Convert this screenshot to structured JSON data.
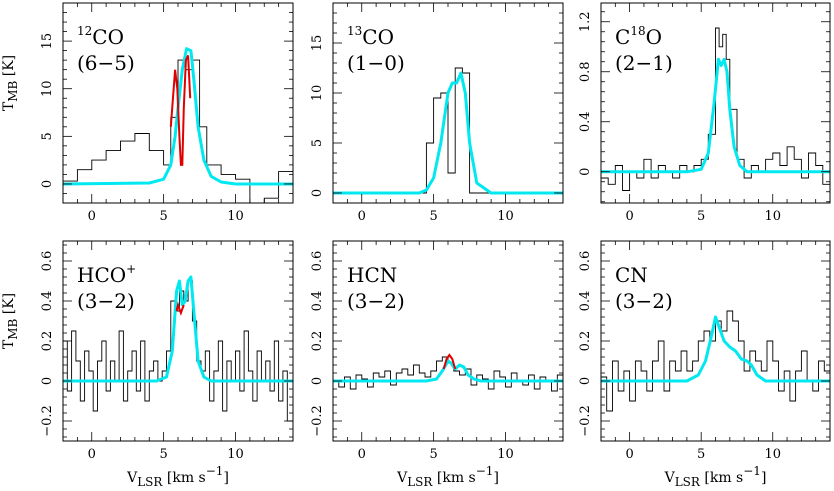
{
  "colors": {
    "model": "#00e8f0",
    "red_model": "#e00000",
    "spectrum": "#000000"
  },
  "chart_data": [
    {
      "type": "line",
      "title": "",
      "molecule": "CO",
      "isotope": "12",
      "transition": "(6−5)",
      "ylabel_main": "T",
      "ylabel_sub": "MB",
      "ylabel_unit": " [K]",
      "xlabel_main": "",
      "xlabel_sub": "",
      "xlabel_unit": "",
      "xlim": [
        -2,
        14
      ],
      "ylim": [
        -2,
        19
      ],
      "x_ticks": [
        0,
        5,
        10
      ],
      "y_ticks": [
        0,
        5,
        10,
        15
      ],
      "x_tick_labels": [
        "0",
        "5",
        "10"
      ],
      "y_tick_labels": [
        "0",
        "5",
        "10",
        "15"
      ],
      "series": [
        {
          "style": "hist",
          "x": [
            -2,
            -1,
            0,
            1,
            2,
            3,
            4,
            5,
            5.5,
            6,
            6.5,
            7,
            7.5,
            8,
            9,
            10,
            11,
            12,
            13,
            14
          ],
          "y": [
            0.3,
            1.5,
            2.5,
            3.5,
            4.5,
            5.3,
            3.5,
            2,
            7,
            13,
            12,
            13,
            6,
            2,
            1,
            0.5,
            -2,
            -1.5,
            1.3,
            1.3
          ]
        },
        {
          "style": "cyan",
          "x": [
            -2,
            4,
            5,
            5.5,
            5.8,
            6,
            6.3,
            6.6,
            6.9,
            7.1,
            7.4,
            7.8,
            8.3,
            9,
            10,
            14
          ],
          "y": [
            0,
            0.1,
            0.5,
            2,
            5,
            8,
            12,
            14.2,
            14,
            11,
            6,
            2.5,
            0.8,
            0.2,
            0,
            0
          ]
        },
        {
          "style": "red",
          "x": [
            5.5,
            5.8,
            5.95,
            6.1,
            6.2,
            6.3,
            6.4,
            6.55,
            6.7,
            6.85
          ],
          "y": [
            6,
            12,
            10,
            5,
            2,
            2,
            8,
            13,
            13.5,
            9
          ]
        }
      ]
    },
    {
      "type": "line",
      "title": "",
      "molecule": "CO",
      "isotope": "13",
      "transition": "(1−0)",
      "ylabel_main": "",
      "ylabel_sub": "",
      "ylabel_unit": "",
      "xlabel_main": "",
      "xlabel_sub": "",
      "xlabel_unit": "",
      "xlim": [
        -2,
        14
      ],
      "ylim": [
        -1,
        19
      ],
      "x_ticks": [
        0,
        5,
        10
      ],
      "y_ticks": [
        0,
        5,
        10,
        15
      ],
      "x_tick_labels": [
        "0",
        "5",
        "10"
      ],
      "y_tick_labels": [
        "0",
        "5",
        "10",
        "15"
      ],
      "series": [
        {
          "style": "hist",
          "x": [
            4,
            4.5,
            5,
            5.5,
            6,
            6.5,
            7,
            7.5
          ],
          "y": [
            0,
            5,
            9.5,
            10,
            2,
            12.5,
            12,
            0
          ]
        },
        {
          "style": "cyan",
          "x": [
            -2,
            4,
            4.5,
            5,
            5.5,
            5.8,
            6,
            6.3,
            6.6,
            6.9,
            7.2,
            7.5,
            8,
            9,
            14
          ],
          "y": [
            0,
            0,
            0.3,
            1.5,
            5,
            8,
            10,
            11,
            11,
            12,
            10,
            5,
            1,
            0,
            0
          ]
        }
      ]
    },
    {
      "type": "line",
      "title": "",
      "molecule": "O",
      "isotope": "18",
      "isotope_prefix": "C",
      "transition": "(2−1)",
      "ylabel_main": "",
      "ylabel_sub": "",
      "ylabel_unit": "",
      "xlabel_main": "",
      "xlabel_sub": "",
      "xlabel_unit": "",
      "xlim": [
        -2,
        14
      ],
      "ylim": [
        -0.25,
        1.35
      ],
      "x_ticks": [
        0,
        5,
        10
      ],
      "y_ticks": [
        0,
        0.4,
        0.8,
        1.2
      ],
      "x_tick_labels": [
        "0",
        "5",
        "10"
      ],
      "y_tick_labels": [
        "0",
        "0.4",
        "0.8",
        "1.2"
      ],
      "series": [
        {
          "style": "hist",
          "x": [
            -2,
            -1.5,
            -1,
            -0.5,
            0,
            0.5,
            1,
            1.5,
            2,
            2.5,
            3,
            3.5,
            4,
            4.5,
            5,
            5.5,
            6,
            6.25,
            6.5,
            6.75,
            7,
            7.5,
            8,
            8.5,
            9,
            9.5,
            10,
            10.5,
            11,
            11.5,
            12,
            12.5,
            13,
            13.5,
            14
          ],
          "y": [
            -0.05,
            -0.1,
            0.05,
            -0.15,
            0,
            -0.05,
            0.1,
            -0.05,
            0.05,
            0,
            -0.05,
            0.05,
            0,
            0.05,
            0.1,
            0.3,
            1.15,
            1.0,
            1.1,
            0.9,
            0.5,
            0.1,
            -0.05,
            0.05,
            0,
            0.1,
            0.15,
            0.05,
            0.2,
            0.1,
            -0.05,
            0.15,
            0.05,
            -0.1,
            0
          ]
        },
        {
          "style": "cyan",
          "x": [
            -2,
            4,
            5,
            5.5,
            5.9,
            6.2,
            6.4,
            6.6,
            6.8,
            7,
            7.3,
            7.7,
            8.2,
            9,
            14
          ],
          "y": [
            0,
            0,
            0.02,
            0.15,
            0.55,
            0.9,
            0.85,
            0.9,
            0.8,
            0.5,
            0.2,
            0.05,
            0,
            0,
            0
          ]
        }
      ]
    },
    {
      "type": "line",
      "title": "",
      "molecule": "HCO",
      "isotope": "",
      "ion": "+",
      "transition": "(3−2)",
      "ylabel_main": "T",
      "ylabel_sub": "MB",
      "ylabel_unit": " [K]",
      "xlabel_main": "V",
      "xlabel_sub": "LSR",
      "xlabel_unit": " [km s",
      "xlim": [
        -2,
        14
      ],
      "ylim": [
        -0.3,
        0.7
      ],
      "x_ticks": [
        0,
        5,
        10
      ],
      "y_ticks": [
        -0.2,
        0,
        0.2,
        0.4,
        0.6
      ],
      "x_tick_labels": [
        "0",
        "5",
        "10"
      ],
      "y_tick_labels": [
        "−0.2",
        "0",
        "0.2",
        "0.4",
        "0.6"
      ],
      "series": [
        {
          "style": "hist",
          "x": [
            -2,
            -1.7,
            -1.4,
            -1.1,
            -0.8,
            -0.5,
            -0.2,
            0.1,
            0.4,
            0.7,
            1,
            1.3,
            1.6,
            1.9,
            2.2,
            2.5,
            2.8,
            3.1,
            3.4,
            3.7,
            4,
            4.3,
            4.6,
            4.9,
            5.2,
            5.5,
            5.8,
            6.1,
            6.4,
            6.7,
            7,
            7.3,
            7.6,
            7.9,
            8.2,
            8.5,
            8.8,
            9.1,
            9.4,
            9.7,
            10,
            10.3,
            10.6,
            10.9,
            11.2,
            11.5,
            11.8,
            12.1,
            12.4,
            12.7,
            13,
            13.3,
            13.6,
            14
          ],
          "y": [
            0.2,
            -0.05,
            0.25,
            0.1,
            -0.1,
            0.15,
            0.05,
            -0.15,
            0.1,
            0.2,
            -0.05,
            0.1,
            0,
            0.25,
            -0.1,
            0.05,
            0.15,
            -0.05,
            0.2,
            -0.1,
            0.05,
            0.1,
            0,
            0.05,
            0.15,
            0.4,
            0.35,
            0.45,
            0.4,
            0.5,
            0.3,
            0.1,
            0.05,
            0.15,
            -0.1,
            0.05,
            0.2,
            -0.15,
            0.1,
            0,
            0.15,
            -0.05,
            0.25,
            0.05,
            -0.1,
            0.15,
            0,
            0.1,
            -0.05,
            0.2,
            -0.1,
            0.05,
            -0.2,
            -0.2
          ]
        },
        {
          "style": "cyan",
          "x": [
            -2,
            4.5,
            5.2,
            5.6,
            5.9,
            6.1,
            6.3,
            6.5,
            6.7,
            6.9,
            7.1,
            7.4,
            7.8,
            8.3,
            9,
            14
          ],
          "y": [
            0,
            0,
            0.02,
            0.15,
            0.45,
            0.5,
            0.38,
            0.4,
            0.5,
            0.52,
            0.35,
            0.1,
            0.02,
            0,
            0,
            0
          ]
        },
        {
          "style": "red",
          "x": [
            5.9,
            6.0,
            6.1,
            6.2,
            6.3,
            6.4
          ],
          "y": [
            0.35,
            0.38,
            0.36,
            0.34,
            0.36,
            0.38
          ]
        }
      ]
    },
    {
      "type": "line",
      "title": "",
      "molecule": "HCN",
      "isotope": "",
      "transition": "(3−2)",
      "ylabel_main": "",
      "ylabel_sub": "",
      "ylabel_unit": "",
      "xlabel_main": "V",
      "xlabel_sub": "LSR",
      "xlabel_unit": " [km s",
      "xlim": [
        -2,
        14
      ],
      "ylim": [
        -0.3,
        0.7
      ],
      "x_ticks": [
        0,
        5,
        10
      ],
      "y_ticks": [
        -0.2,
        0,
        0.2,
        0.4,
        0.6
      ],
      "x_tick_labels": [
        "0",
        "5",
        "10"
      ],
      "y_tick_labels": [
        "−0.2",
        "0",
        "0.2",
        "0.4",
        "0.6"
      ],
      "series": [
        {
          "style": "hist",
          "x": [
            -2,
            -1.6,
            -1.2,
            -0.8,
            -0.4,
            0,
            0.4,
            0.8,
            1.2,
            1.6,
            2,
            2.4,
            2.8,
            3.2,
            3.6,
            4,
            4.4,
            4.8,
            5.2,
            5.6,
            6,
            6.4,
            6.8,
            7.2,
            7.6,
            8,
            8.4,
            8.8,
            9.2,
            9.6,
            10,
            10.4,
            10.8,
            11.2,
            11.6,
            12,
            12.4,
            12.8,
            13.2,
            13.6,
            14
          ],
          "y": [
            0,
            -0.03,
            0.02,
            -0.04,
            0.03,
            0.01,
            -0.03,
            0.04,
            0.02,
            0.05,
            -0.02,
            0.04,
            0.06,
            0.03,
            0.08,
            0.04,
            0.02,
            0.05,
            0.1,
            0.12,
            0.09,
            0.05,
            0.03,
            0.06,
            -0.02,
            0.03,
            0.01,
            -0.04,
            0.05,
            0.02,
            -0.03,
            0.04,
            0,
            -0.02,
            0.03,
            -0.04,
            0.02,
            0,
            -0.05,
            0.03,
            0.03
          ]
        },
        {
          "style": "cyan",
          "x": [
            -2,
            4.5,
            5.2,
            5.6,
            6,
            6.2,
            6.5,
            6.8,
            7.1,
            7.4,
            7.8,
            8.3,
            9,
            14
          ],
          "y": [
            0,
            0,
            0.01,
            0.05,
            0.1,
            0.09,
            0.06,
            0.08,
            0.07,
            0.03,
            0.01,
            0,
            0,
            0
          ]
        },
        {
          "style": "red",
          "x": [
            5.7,
            5.9,
            6.1,
            6.3,
            6.5
          ],
          "y": [
            0.06,
            0.11,
            0.13,
            0.11,
            0.06
          ]
        }
      ]
    },
    {
      "type": "line",
      "title": "",
      "molecule": "CN",
      "isotope": "",
      "transition": "(3−2)",
      "ylabel_main": "",
      "ylabel_sub": "",
      "ylabel_unit": "",
      "xlabel_main": "V",
      "xlabel_sub": "LSR",
      "xlabel_unit": " [km s",
      "xlim": [
        -2,
        14
      ],
      "ylim": [
        -0.3,
        0.7
      ],
      "x_ticks": [
        0,
        5,
        10
      ],
      "y_ticks": [
        -0.2,
        0,
        0.2,
        0.4,
        0.6
      ],
      "x_tick_labels": [
        "0",
        "5",
        "10"
      ],
      "y_tick_labels": [
        "−0.2",
        "0",
        "0.2",
        "0.4",
        "0.6"
      ],
      "series": [
        {
          "style": "hist",
          "x": [
            -2,
            -1.6,
            -1.2,
            -0.8,
            -0.4,
            0,
            0.4,
            0.8,
            1.2,
            1.6,
            2,
            2.4,
            2.8,
            3.2,
            3.6,
            4,
            4.4,
            4.8,
            5.2,
            5.6,
            6,
            6.4,
            6.8,
            7.2,
            7.6,
            8,
            8.4,
            8.8,
            9.2,
            9.6,
            10,
            10.4,
            10.8,
            11.2,
            11.6,
            12,
            12.4,
            12.8,
            13.2,
            13.6,
            14
          ],
          "y": [
            0.02,
            -0.15,
            0.1,
            -0.05,
            0.05,
            -0.1,
            0.1,
            0.05,
            -0.05,
            0.1,
            0.2,
            -0.05,
            0.1,
            0.05,
            0.15,
            0.05,
            0.1,
            0.2,
            0.25,
            0.2,
            0.3,
            0.25,
            0.35,
            0.3,
            0.2,
            0.05,
            0.15,
            0.1,
            0.05,
            0.2,
            0.1,
            -0.05,
            0.05,
            -0.1,
            0.05,
            0.15,
            0,
            -0.05,
            0.1,
            0.05,
            0.05
          ]
        },
        {
          "style": "cyan",
          "x": [
            -2,
            4,
            4.8,
            5.3,
            5.7,
            6,
            6.3,
            6.6,
            7,
            7.4,
            7.8,
            8.2,
            8.5,
            8.9,
            9.5,
            14
          ],
          "y": [
            0,
            0,
            0.03,
            0.1,
            0.22,
            0.32,
            0.26,
            0.2,
            0.17,
            0.15,
            0.11,
            0.1,
            0.08,
            0.03,
            0,
            0
          ]
        }
      ]
    }
  ]
}
